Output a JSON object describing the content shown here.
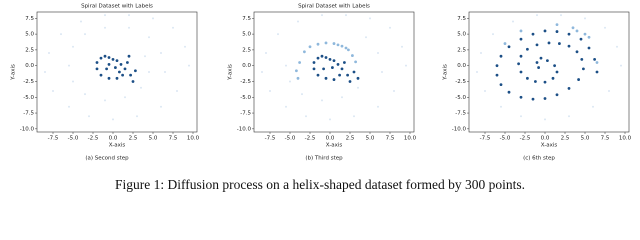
{
  "caption": "Figure 1: Diffusion process on a helix-shaped dataset formed by 300 points.",
  "chart_data": [
    {
      "type": "scatter",
      "title": "Spiral Dataset with Labels",
      "subcaption": "(a) Second step",
      "xlabel": "X-axis",
      "ylabel": "Y-axis",
      "xlim": [
        -9.5,
        10.5
      ],
      "ylim": [
        -10.5,
        8.5
      ],
      "xticks": [
        -7.5,
        {
          "value": -5,
          "label": "-5.0"
        },
        -2.5,
        {
          "value": 0,
          "label": "0.0"
        },
        2.5,
        {
          "value": 5,
          "label": "5.0"
        },
        7.5,
        {
          "value": 10,
          "label": "10.0"
        }
      ],
      "yticks": [
        {
          "value": -10,
          "label": "-10.0"
        },
        -7.5,
        {
          "value": -5,
          "label": "-5.0"
        },
        -2.5,
        {
          "value": 0,
          "label": "0.0"
        },
        2.5,
        {
          "value": 5,
          "label": "5.0"
        },
        7.5
      ],
      "series": [
        {
          "color": "#dbe7f3",
          "x": [
            9.5,
            9,
            7.5,
            5,
            2,
            -1,
            -4,
            -6.5,
            -8,
            -8.5,
            -7.5,
            -5.5,
            -3,
            0,
            3,
            6,
            8,
            6.5,
            6,
            4.5,
            2,
            -1,
            -3.5,
            -5,
            -5.5,
            -5,
            -3.5,
            -1,
            1.5,
            3.5,
            4.5,
            4
          ],
          "y": [
            0,
            3,
            6,
            7.5,
            8,
            8,
            7,
            5,
            2,
            -1,
            -4,
            -6.5,
            -8,
            -8.5,
            -8,
            -6.5,
            -4,
            -1,
            2,
            4.5,
            6,
            6,
            5,
            3,
            0,
            -2.5,
            -4.5,
            -5.5,
            -5,
            -3.5,
            -1,
            1.5
          ]
        },
        {
          "color": "#1c4f86",
          "x": [
            -1.5,
            -1,
            -0.5,
            0,
            0.5,
            -2,
            -2,
            -1.5,
            -0.5,
            0.5,
            1.2,
            1.5,
            1.8,
            2,
            2.2,
            2.5,
            0.3,
            -0.8,
            1,
            -0.5,
            0.8,
            2.8
          ],
          "y": [
            1.2,
            1.5,
            1.3,
            1,
            0.8,
            0.5,
            -0.5,
            -1.5,
            -2,
            -2,
            -1.5,
            -0.5,
            0.5,
            1.5,
            -1.5,
            -2.5,
            -0.3,
            -0.5,
            0.2,
            0.2,
            -1,
            -0.8
          ]
        }
      ]
    },
    {
      "type": "scatter",
      "title": "Spiral Dataset with Labels",
      "subcaption": "(b) Third step",
      "xlabel": "X-axis",
      "ylabel": "Y-axis",
      "xlim": [
        -9.5,
        10.5
      ],
      "ylim": [
        -10.5,
        8.5
      ],
      "xticks": [
        -7.5,
        {
          "value": -5,
          "label": "-5.0"
        },
        -2.5,
        {
          "value": 0,
          "label": "0.0"
        },
        2.5,
        {
          "value": 5,
          "label": "5.0"
        },
        7.5,
        {
          "value": 10,
          "label": "10.0"
        }
      ],
      "yticks": [
        {
          "value": -10,
          "label": "-10.0"
        },
        -7.5,
        {
          "value": -5,
          "label": "-5.0"
        },
        -2.5,
        {
          "value": 0,
          "label": "0.0"
        },
        2.5,
        {
          "value": 5,
          "label": "5.0"
        },
        7.5
      ],
      "series": [
        {
          "color": "#dbe7f3",
          "x": [
            9.5,
            9,
            7.5,
            5,
            2,
            -1,
            -4,
            -6.5,
            -8,
            -8.5,
            -7.5,
            -5.5,
            -3,
            0,
            3,
            6,
            8,
            6.5,
            6,
            4.5,
            -5.5,
            -5,
            -3.5,
            -1,
            1.5,
            3.5
          ],
          "y": [
            0,
            3,
            6,
            7.5,
            8,
            8,
            7,
            5,
            2,
            -1,
            -4,
            -6.5,
            -8,
            -8.5,
            -8,
            -6.5,
            -4,
            -1,
            2,
            4.5,
            0,
            -2.5,
            -4.5,
            -5.5,
            -5,
            -3.5
          ]
        },
        {
          "color": "#8fb8dc",
          "x": [
            -4,
            -3.8,
            -3.2,
            -2.5,
            -1.5,
            -0.5,
            0.5,
            1.5,
            2.3,
            2.8,
            3.2,
            -4.2,
            2,
            1
          ],
          "y": [
            -2,
            0.5,
            2.2,
            3,
            3.4,
            3.6,
            3.5,
            3.1,
            2.5,
            1.6,
            0.6,
            -0.8,
            2.8,
            3.3
          ]
        },
        {
          "color": "#1c4f86",
          "x": [
            -1.5,
            -1,
            -0.5,
            0,
            0.5,
            -2,
            -2,
            -1.5,
            -0.5,
            0.5,
            1.2,
            1.5,
            1.8,
            2.2,
            2.5,
            0.3,
            -0.8,
            1,
            3,
            3.5
          ],
          "y": [
            1.2,
            1.5,
            1.3,
            1,
            0.8,
            0.5,
            -0.5,
            -1.5,
            -2,
            -2.2,
            -1.5,
            -0.5,
            0.5,
            -1.5,
            -2.5,
            -0.3,
            -0.5,
            0.2,
            -1,
            -2
          ]
        }
      ]
    },
    {
      "type": "scatter",
      "subcaption": "(c) 6th step",
      "xlabel": "X-axis",
      "ylabel": "Y-axis",
      "xlim": [
        -9.5,
        10.5
      ],
      "ylim": [
        -10.5,
        8.5
      ],
      "xticks": [
        -7.5,
        {
          "value": -5,
          "label": "-5.0"
        },
        -2.5,
        {
          "value": 0,
          "label": "0.0"
        },
        2.5,
        {
          "value": 5,
          "label": "5.0"
        },
        7.5,
        {
          "value": 10,
          "label": "10.0"
        }
      ],
      "yticks": [
        {
          "value": -10,
          "label": "-10.0"
        },
        -7.5,
        {
          "value": -5,
          "label": "-5.0"
        },
        -2.5,
        {
          "value": 0,
          "label": "0.0"
        },
        2.5,
        {
          "value": 5,
          "label": "5.0"
        },
        7.5
      ],
      "series": [
        {
          "color": "#dbe7f3",
          "x": [
            9.5,
            9,
            7.5,
            5,
            2,
            -1,
            -4,
            -6.5,
            -8,
            -8.5,
            -7.5,
            -5.5,
            -3,
            0,
            3,
            6,
            8
          ],
          "y": [
            0,
            3,
            6,
            7.5,
            8,
            8,
            7,
            5,
            2,
            -1,
            -4,
            -6.5,
            -8,
            -8.5,
            -8,
            -6.5,
            -4
          ]
        },
        {
          "color": "#8fb8dc",
          "x": [
            1.5,
            3.5,
            5,
            5.5,
            -3,
            -5,
            6.5,
            4
          ],
          "y": [
            6.5,
            6,
            5,
            4.5,
            5.5,
            3.5,
            0.5,
            5.5
          ]
        },
        {
          "color": "#1c4f86",
          "x": [
            6.5,
            6.2,
            5.5,
            4.5,
            3,
            1.5,
            0,
            -1.5,
            -3,
            -4.5,
            -5.5,
            -6,
            -6,
            -5.5,
            -4.5,
            -3,
            -1.5,
            0,
            1.5,
            3,
            4.2,
            4.8,
            4.6,
            4,
            3,
            1.8,
            0.5,
            -1,
            -2.2,
            -3,
            -3.3,
            -3,
            -2.2,
            -1.2,
            0,
            1,
            1.5,
            1.2,
            0.3,
            -0.5,
            -1,
            -0.8
          ],
          "y": [
            -1,
            1,
            2.8,
            4.2,
            5,
            5.4,
            5.5,
            5,
            4.2,
            3,
            1.5,
            0,
            -1.5,
            -3,
            -4.2,
            -5,
            -5.3,
            -5.2,
            -4.6,
            -3.6,
            -2.2,
            -0.5,
            1,
            2.2,
            3.1,
            3.5,
            3.6,
            3.3,
            2.6,
            1.5,
            0.3,
            -1,
            -2,
            -2.5,
            -2.6,
            -2,
            -1,
            0,
            0.8,
            1.2,
            0.5,
            -0.3
          ]
        }
      ]
    }
  ]
}
